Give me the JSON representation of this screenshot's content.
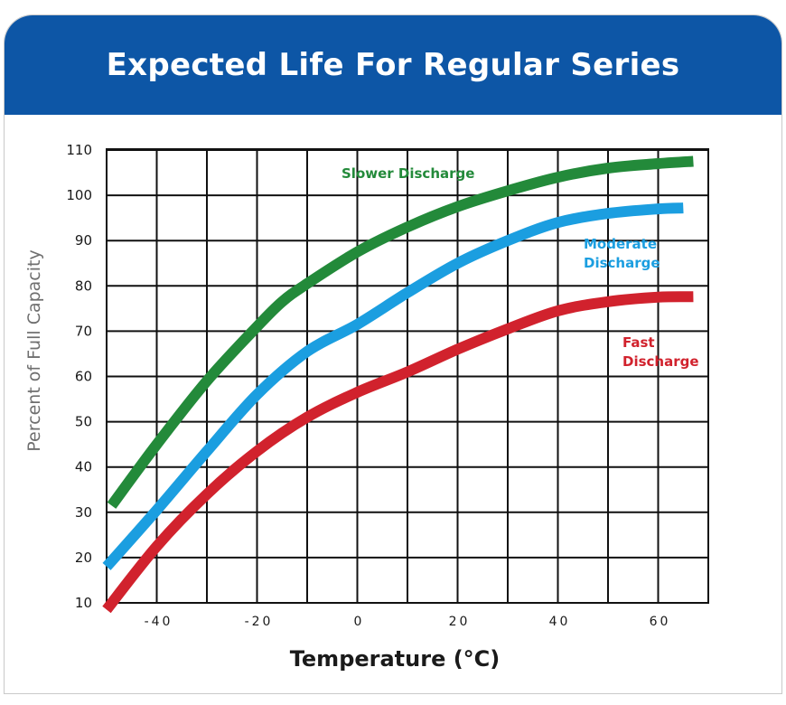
{
  "chart_data": {
    "type": "line",
    "title": "Expected Life For Regular Series",
    "xlabel": "Temperature (°C)",
    "ylabel": "Percent of Full Capacity",
    "xlim": [
      -50,
      70
    ],
    "ylim": [
      10,
      110
    ],
    "x_ticks": [
      {
        "value": -40,
        "label": "-40"
      },
      {
        "value": -20,
        "label": "-20"
      },
      {
        "value": 0,
        "label": "0"
      },
      {
        "value": 20,
        "label": "20"
      },
      {
        "value": 40,
        "label": "40"
      },
      {
        "value": 60,
        "label": "60"
      }
    ],
    "y_ticks": [
      {
        "value": 10,
        "label": "10"
      },
      {
        "value": 20,
        "label": "20"
      },
      {
        "value": 30,
        "label": "30"
      },
      {
        "value": 40,
        "label": "40"
      },
      {
        "value": 50,
        "label": "50"
      },
      {
        "value": 60,
        "label": "60"
      },
      {
        "value": 70,
        "label": "70"
      },
      {
        "value": 80,
        "label": "80"
      },
      {
        "value": 90,
        "label": "90"
      },
      {
        "value": 100,
        "label": "100"
      },
      {
        "value": 110,
        "label": "110"
      }
    ],
    "grid": true,
    "series": [
      {
        "name": "Slower Discharge",
        "label_lines": [
          "Slower Discharge"
        ],
        "color": "#238a3a",
        "x": [
          -49,
          -40,
          -30,
          -20,
          -15,
          -10,
          0,
          10,
          20,
          30,
          40,
          50,
          60,
          67
        ],
        "y": [
          31.5,
          45,
          59,
          71,
          76.5,
          80.5,
          87.5,
          93,
          97.5,
          101,
          104,
          106,
          107,
          107.5
        ]
      },
      {
        "name": "Moderate Discharge",
        "label_lines": [
          "Moderate",
          "Discharge"
        ],
        "color": "#1b9ee0",
        "x": [
          -50,
          -40,
          -30,
          -20,
          -10,
          0,
          10,
          20,
          30,
          40,
          50,
          60,
          65
        ],
        "y": [
          18,
          30.5,
          43.5,
          56,
          65.5,
          71.5,
          78.5,
          85,
          90,
          94,
          96,
          97,
          97.2
        ]
      },
      {
        "name": "Fast Discharge",
        "label_lines": [
          "Fast",
          "Discharge"
        ],
        "color": "#d1222d",
        "x": [
          -50,
          -40,
          -30,
          -20,
          -10,
          0,
          10,
          20,
          30,
          40,
          50,
          60,
          67
        ],
        "y": [
          8.5,
          22.5,
          34,
          43.5,
          51,
          56.5,
          61,
          66,
          70.5,
          74.5,
          76.5,
          77.5,
          77.6
        ]
      }
    ]
  }
}
